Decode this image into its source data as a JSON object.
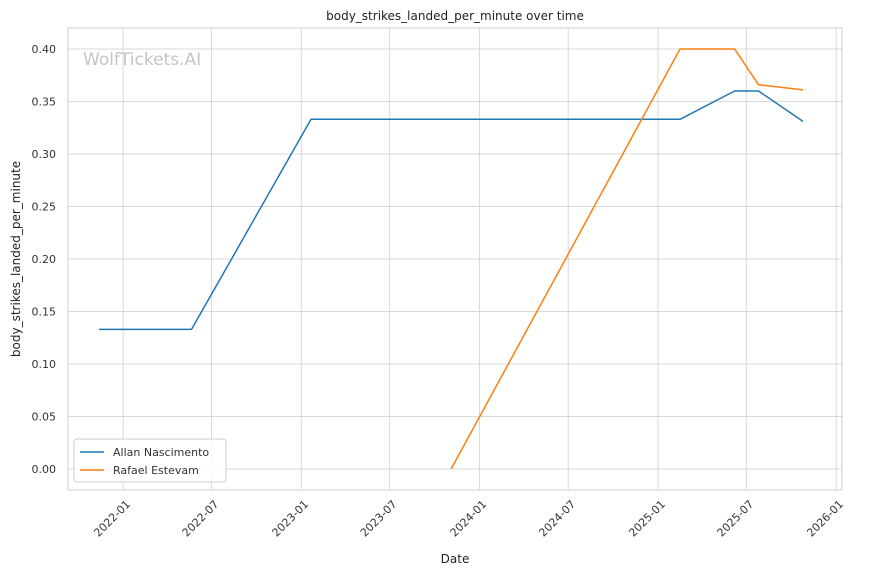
{
  "chart_data": {
    "type": "line",
    "title": "body_strikes_landed_per_minute over time",
    "xlabel": "Date",
    "ylabel": "body_strikes_landed_per_minute",
    "watermark": "WolfTickets.AI",
    "x_ticks": [
      "2022-01",
      "2022-07",
      "2023-01",
      "2023-07",
      "2024-01",
      "2024-07",
      "2025-01",
      "2025-07",
      "2026-01"
    ],
    "y_ticks": [
      "0.00",
      "0.05",
      "0.10",
      "0.15",
      "0.20",
      "0.25",
      "0.30",
      "0.35",
      "0.40"
    ],
    "xlim": [
      "2021-09-10",
      "2026-01-13"
    ],
    "ylim": [
      -0.02,
      0.42
    ],
    "grid": true,
    "legend_position": "lower-left",
    "series": [
      {
        "name": "Allan Nascimento",
        "color": "#1f77b4",
        "x": [
          "2021-11-13",
          "2022-05-21",
          "2023-01-21",
          "2025-02-15",
          "2025-06-07",
          "2025-07-26",
          "2025-10-25"
        ],
        "values": [
          0.133,
          0.133,
          0.333,
          0.333,
          0.36,
          0.36,
          0.331
        ]
      },
      {
        "name": "Rafael Estevam",
        "color": "#ff7f0e",
        "x": [
          "2023-11-04",
          "2025-02-15",
          "2025-06-07",
          "2025-07-26",
          "2025-10-25"
        ],
        "values": [
          0.0,
          0.4,
          0.4,
          0.366,
          0.361
        ]
      }
    ]
  }
}
